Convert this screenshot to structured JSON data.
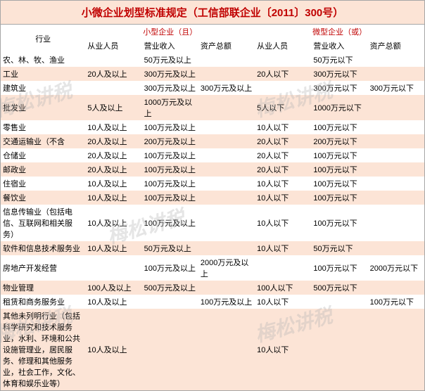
{
  "title": "小微企业划型标准规定（工信部联企业〔2011〕300号）",
  "headers": {
    "industry": "行业",
    "small_group": "小型企业（且）",
    "micro_group": "微型企业（或）",
    "sub": [
      "从业人员",
      "营业收入",
      "资产总额",
      "从业人员",
      "营业收入",
      "资产总额"
    ]
  },
  "rows": [
    {
      "industry": "农、林、牧、渔业",
      "c": [
        "",
        "50万元及以上",
        "",
        "",
        "50万元以下",
        ""
      ]
    },
    {
      "industry": "工业",
      "c": [
        "20人及以上",
        "300万元及以上",
        "",
        "20人以下",
        "300万元以下",
        ""
      ]
    },
    {
      "industry": "建筑业",
      "c": [
        "",
        "300万元及以上",
        "300万元及以上",
        "",
        "300万元以下",
        "300万元以下"
      ]
    },
    {
      "industry": "批发业",
      "c": [
        "5人及以上",
        "1000万元及以上",
        "",
        "5人以下",
        "1000万元以下",
        ""
      ]
    },
    {
      "industry": "零售业",
      "c": [
        "10人及以上",
        "100万元及以上",
        "",
        "10人以下",
        "100万元以下",
        ""
      ]
    },
    {
      "industry": "交通运输业（不含",
      "c": [
        "20人及以上",
        "200万元及以上",
        "",
        "20人以下",
        "200万元以下",
        ""
      ]
    },
    {
      "industry": "仓储业",
      "c": [
        "20人及以上",
        "100万元及以上",
        "",
        "20人以下",
        "100万元以下",
        ""
      ]
    },
    {
      "industry": "邮政业",
      "c": [
        "20人及以上",
        "100万元及以上",
        "",
        "20人以下",
        "100万元以下",
        ""
      ]
    },
    {
      "industry": "住宿业",
      "c": [
        "10人及以上",
        "100万元及以上",
        "",
        "10人以下",
        "100万元以下",
        ""
      ]
    },
    {
      "industry": "餐饮业",
      "c": [
        "10人及以上",
        "100万元及以上",
        "",
        "10人以下",
        "100万元以下",
        ""
      ]
    },
    {
      "industry": "信息传输业（包括电信、互联网和相关服务）",
      "c": [
        "10人及以上",
        "100万元及以上",
        "",
        "10人以下",
        "100万元以下",
        ""
      ]
    },
    {
      "industry": "软件和信息技术服务业",
      "c": [
        "10人及以上",
        "50万元及以上",
        "",
        "10人以下",
        "50万元以下",
        ""
      ]
    },
    {
      "industry": "房地产开发经营",
      "c": [
        "",
        "100万元及以上",
        "2000万元及以上",
        "",
        "100万元以下",
        "2000万元以下"
      ]
    },
    {
      "industry": "物业管理",
      "c": [
        "100人及以上",
        "500万元及以上",
        "",
        "100人以下",
        "500万元以下",
        ""
      ]
    },
    {
      "industry": "租赁和商务服务业",
      "c": [
        "10人及以上",
        "",
        "100万元及以上",
        "10人以下",
        "",
        "100万元以下"
      ]
    },
    {
      "industry": "其他未列明行业（包括科学研究和技术服务业，水利、环境和公共设施管理业，居民服务、修理和其他服务业，社会工作，文化、体育和娱乐业等）",
      "c": [
        "10人及以上",
        "",
        "",
        "10人以下",
        "",
        ""
      ]
    }
  ],
  "watermark": {
    "main": "梅松讲税",
    "sub": ""
  },
  "colors": {
    "title_bg": "#fce4d6",
    "title_color": "#c00000",
    "stripe": "#fce4d6",
    "border": "#a6a6a6"
  }
}
